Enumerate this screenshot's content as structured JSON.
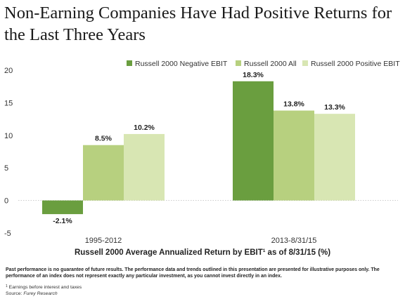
{
  "chart_data": {
    "type": "bar",
    "title": "Non-Earning Companies Have Had Positive Returns for the Last Three Years",
    "xlabel_main": "Russell 2000 Average Annualized Return by EBIT",
    "xlabel_sup": "1",
    "xlabel_tail": " as of 8/31/15 (%)",
    "ylabel": "",
    "categories": [
      "1995-2012",
      "2013-8/31/15"
    ],
    "ylim": [
      -5,
      20
    ],
    "yticks": [
      20,
      15,
      10,
      5,
      0,
      -5
    ],
    "grid": false,
    "legend_position": "top-right",
    "series": [
      {
        "name": "Russell 2000 Negative EBIT",
        "color": "#6a9e3f",
        "values": [
          -2.1,
          18.3
        ],
        "labels": [
          "-2.1%",
          "18.3%"
        ]
      },
      {
        "name": "Russell 2000 All",
        "color": "#b7d07f",
        "values": [
          8.5,
          13.8
        ],
        "labels": [
          "8.5%",
          "13.8%"
        ]
      },
      {
        "name": "Russell 2000 Positive EBIT",
        "color": "#d8e6b3",
        "values": [
          10.2,
          13.3
        ],
        "labels": [
          "10.2%",
          "13.3%"
        ]
      }
    ]
  },
  "disclaimer": "Past performance is no guarantee of future results. The performance data and trends outlined in this presentation are presented for illustrative purposes only. The performance of an index does not represent exactly any particular investment, as you cannot invest directly in an index.",
  "footnote": {
    "marker": "1",
    "text": " Earnings before interest and taxes",
    "source_label": "Source: ",
    "source_name": "Furey Research"
  }
}
